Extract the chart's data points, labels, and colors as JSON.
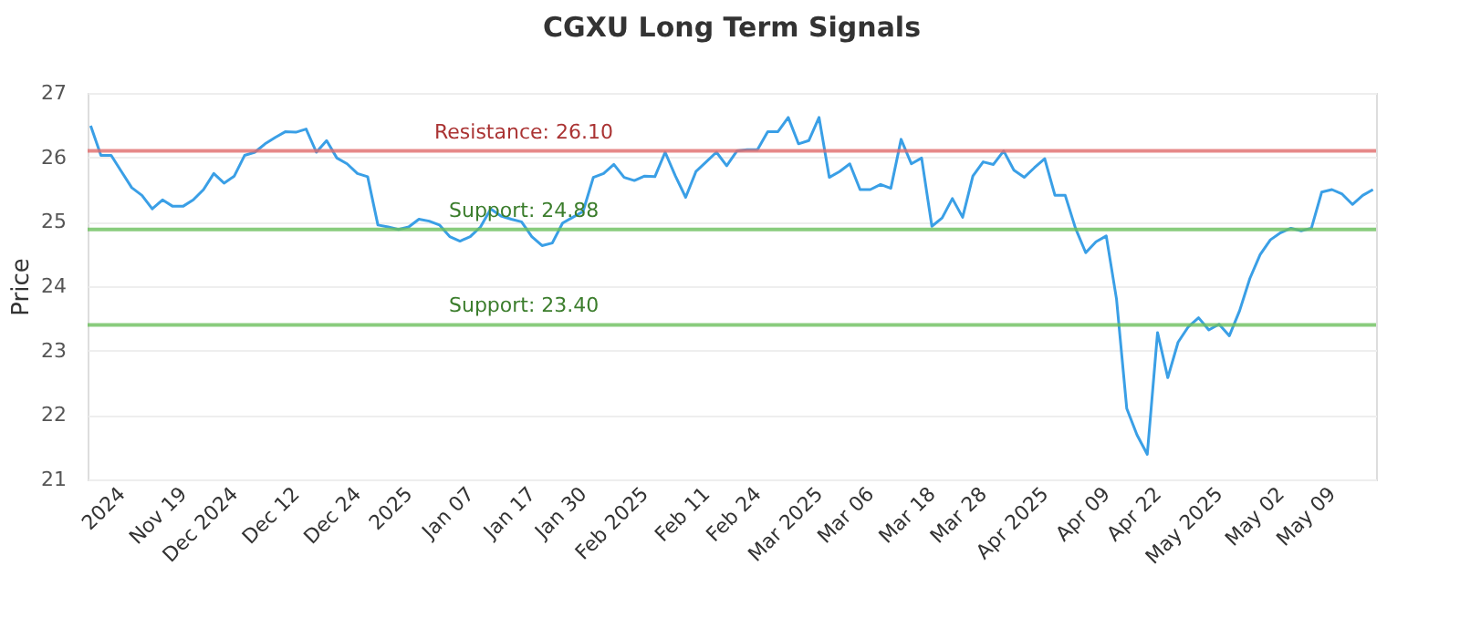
{
  "chart_data": {
    "type": "line",
    "title": "CGXU Long Term Signals",
    "ylabel": "Price",
    "categories": [
      null,
      null,
      null,
      "2024",
      null,
      null,
      null,
      null,
      null,
      "Nov 19",
      null,
      null,
      null,
      null,
      "Dec 2024",
      null,
      null,
      null,
      null,
      null,
      "Dec 12",
      null,
      null,
      null,
      null,
      null,
      "Dec 24",
      null,
      null,
      null,
      null,
      "2025",
      null,
      null,
      null,
      null,
      null,
      "Jan 07",
      null,
      null,
      null,
      null,
      null,
      "Jan 17",
      null,
      null,
      null,
      null,
      "Jan 30",
      null,
      null,
      null,
      null,
      null,
      "Feb 2025",
      null,
      null,
      null,
      null,
      null,
      "Feb 11",
      null,
      null,
      null,
      null,
      "Feb 24",
      null,
      null,
      null,
      null,
      null,
      "Mar 2025",
      null,
      null,
      null,
      null,
      "Mar 06",
      null,
      null,
      null,
      null,
      null,
      "Mar 18",
      null,
      null,
      null,
      null,
      "Mar 28",
      null,
      null,
      null,
      null,
      null,
      "Apr 2025",
      null,
      null,
      null,
      null,
      null,
      "Apr 09",
      null,
      null,
      null,
      null,
      "Apr 22",
      null,
      null,
      null,
      null,
      null,
      "May 2025",
      null,
      null,
      null,
      null,
      null,
      "May 02",
      null,
      null,
      null,
      null,
      "May 09",
      null,
      null,
      null,
      null
    ],
    "series": [
      {
        "color": "#3a9fe6",
        "values": [
          26.49,
          26.03,
          26.03,
          25.78,
          25.53,
          25.41,
          25.2,
          25.34,
          25.24,
          25.24,
          25.34,
          25.5,
          25.75,
          25.6,
          25.71,
          26.03,
          26.08,
          26.21,
          26.31,
          26.4,
          26.39,
          26.44,
          26.08,
          26.26,
          25.99,
          25.9,
          25.75,
          25.7,
          24.95,
          24.92,
          24.88,
          24.92,
          25.04,
          25.01,
          24.95,
          24.77,
          24.7,
          24.77,
          24.92,
          25.2,
          25.09,
          25.04,
          25.0,
          24.77,
          24.63,
          24.67,
          24.98,
          25.07,
          25.16,
          25.69,
          25.75,
          25.89,
          25.69,
          25.64,
          25.71,
          25.7,
          26.08,
          25.71,
          25.38,
          25.78,
          25.93,
          26.08,
          25.87,
          26.1,
          26.12,
          26.12,
          26.4,
          26.4,
          26.62,
          26.21,
          26.26,
          26.62,
          25.69,
          25.78,
          25.9,
          25.5,
          25.5,
          25.58,
          25.52,
          26.28,
          25.9,
          25.99,
          24.93,
          25.06,
          25.36,
          25.07,
          25.71,
          25.93,
          25.89,
          26.1,
          25.8,
          25.69,
          25.84,
          25.98,
          25.41,
          25.41,
          24.9,
          24.52,
          24.69,
          24.78,
          23.8,
          22.1,
          21.69,
          21.39,
          23.28,
          22.58,
          23.13,
          23.37,
          23.51,
          23.32,
          23.41,
          23.23,
          23.62,
          24.12,
          24.49,
          24.72,
          24.83,
          24.9,
          24.86,
          24.9,
          25.46,
          25.5,
          25.43,
          25.27,
          25.41,
          25.5
        ]
      }
    ],
    "ylim": [
      21,
      27
    ],
    "yticks": [
      21,
      22,
      23,
      24,
      25,
      26,
      27
    ],
    "ref_lines": [
      {
        "axis": "y",
        "value": 26.1,
        "label": "Resistance: 26.10",
        "color": "#e06b6b"
      },
      {
        "axis": "y",
        "value": 24.88,
        "label": "Support: 24.88",
        "color": "#6cbf5c"
      },
      {
        "axis": "y",
        "value": 23.4,
        "label": "Support: 23.40",
        "color": "#6cbf5c"
      }
    ],
    "grid": "y",
    "legend": false,
    "marker": "none",
    "line_style": "solid"
  }
}
